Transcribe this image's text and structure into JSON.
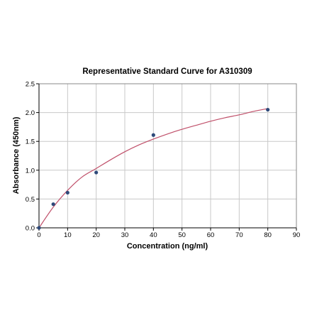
{
  "chart_data": {
    "type": "scatter",
    "title": "Representative Standard Curve for A310309",
    "xlabel": "Concentration (ng/ml)",
    "ylabel": "Absorbance (450nm)",
    "xlim": [
      0,
      90
    ],
    "ylim": [
      0,
      2.5
    ],
    "xticks": [
      "0",
      "10",
      "20",
      "30",
      "40",
      "50",
      "60",
      "70",
      "80",
      "90"
    ],
    "yticks": [
      "0.0",
      "0.5",
      "1.0",
      "1.5",
      "2.0",
      "2.5"
    ],
    "grid": true,
    "colors": {
      "points": "#2e4a7a",
      "curve": "#c0506a",
      "grid": "#c8c8c8",
      "frame": "#888888"
    },
    "points": [
      {
        "x": 0,
        "y": 0.0
      },
      {
        "x": 5,
        "y": 0.41
      },
      {
        "x": 10,
        "y": 0.61
      },
      {
        "x": 20,
        "y": 0.96
      },
      {
        "x": 40,
        "y": 1.61
      },
      {
        "x": 80,
        "y": 2.05
      }
    ],
    "fit_curve": {
      "x": [
        0,
        5,
        10,
        15,
        20,
        25,
        30,
        35,
        40,
        45,
        50,
        55,
        60,
        65,
        70,
        75,
        80
      ],
      "y": [
        0.0,
        0.36,
        0.65,
        0.88,
        1.03,
        1.18,
        1.32,
        1.44,
        1.54,
        1.63,
        1.71,
        1.78,
        1.85,
        1.91,
        1.96,
        2.02,
        2.07
      ]
    }
  }
}
